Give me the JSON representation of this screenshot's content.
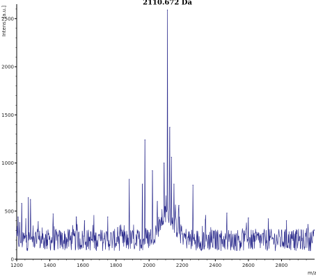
{
  "chart_data": {
    "type": "line",
    "title": "",
    "xlabel": "m/z",
    "ylabel": "Intens. [a.u.]",
    "xlim": [
      1200,
      3000
    ],
    "ylim": [
      0,
      2650
    ],
    "x_ticks": [
      1200,
      1400,
      1600,
      1800,
      2000,
      2200,
      2400,
      2600,
      2800
    ],
    "y_ticks": [
      0,
      500,
      1000,
      1500,
      2000,
      2500
    ],
    "grid": false,
    "series_color": "#2e2e8e",
    "annotations": [
      {
        "text": "2110.672 Da",
        "x": 2110.672,
        "y": 2590
      }
    ],
    "noise_baseline": 200,
    "series": [
      {
        "peaks": [
          {
            "x": 1208,
            "y": 440
          },
          {
            "x": 1218,
            "y": 380
          },
          {
            "x": 1230,
            "y": 580
          },
          {
            "x": 1255,
            "y": 420
          },
          {
            "x": 1270,
            "y": 640
          },
          {
            "x": 1283,
            "y": 620
          },
          {
            "x": 1330,
            "y": 390
          },
          {
            "x": 1420,
            "y": 470
          },
          {
            "x": 1560,
            "y": 440
          },
          {
            "x": 1610,
            "y": 400
          },
          {
            "x": 1750,
            "y": 440
          },
          {
            "x": 1810,
            "y": 330
          },
          {
            "x": 1880,
            "y": 830
          },
          {
            "x": 1960,
            "y": 780
          },
          {
            "x": 1975,
            "y": 1240
          },
          {
            "x": 2020,
            "y": 920
          },
          {
            "x": 2050,
            "y": 600
          },
          {
            "x": 2090,
            "y": 1000
          },
          {
            "x": 2110.672,
            "y": 2590
          },
          {
            "x": 2125,
            "y": 1370
          },
          {
            "x": 2135,
            "y": 1060
          },
          {
            "x": 2150,
            "y": 780
          },
          {
            "x": 2180,
            "y": 560
          },
          {
            "x": 2265,
            "y": 770
          },
          {
            "x": 2340,
            "y": 410
          },
          {
            "x": 2470,
            "y": 480
          },
          {
            "x": 2600,
            "y": 430
          },
          {
            "x": 2720,
            "y": 420
          },
          {
            "x": 2830,
            "y": 400
          },
          {
            "x": 2960,
            "y": 360
          }
        ]
      }
    ]
  }
}
